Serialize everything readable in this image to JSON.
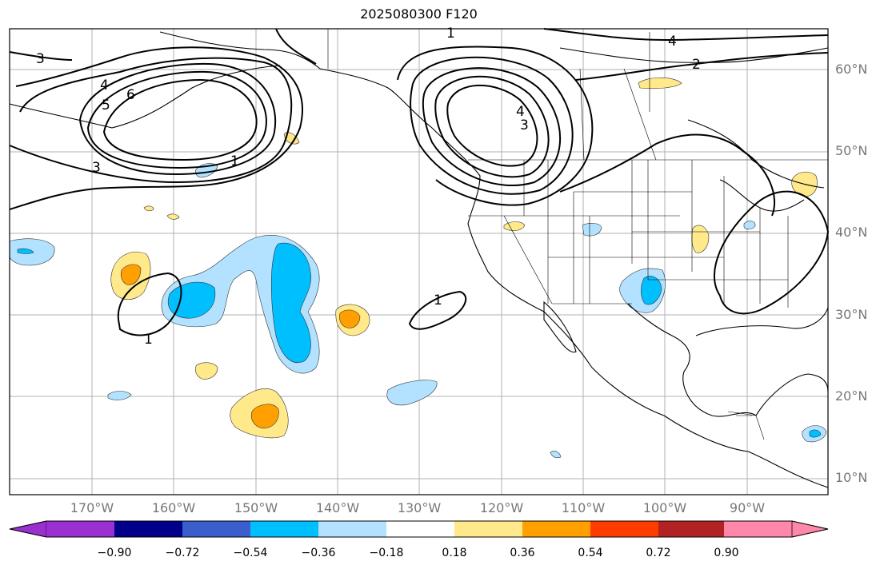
{
  "title": "2025080300 F120",
  "lat_labels": [
    "60°N",
    "50°N",
    "40°N",
    "30°N",
    "20°N",
    "10°N"
  ],
  "lon_labels": [
    "170°W",
    "160°W",
    "150°W",
    "140°W",
    "130°W",
    "120°W",
    "110°W",
    "100°W",
    "90°W"
  ],
  "contour_labels": [
    "1",
    "4",
    "2",
    "3",
    "4",
    "5",
    "6",
    "3",
    "1",
    "4",
    "3",
    "1",
    "1"
  ],
  "colorbar": {
    "ticks": [
      "−0.90",
      "−0.72",
      "−0.54",
      "−0.36",
      "−0.18",
      "0.18",
      "0.36",
      "0.54",
      "0.72",
      "0.90"
    ],
    "colors": [
      "#9b30d0",
      "#00008b",
      "#3a5fcd",
      "#00bfff",
      "#b2e2ff",
      "#ffffff",
      "#ffe98a",
      "#ffa000",
      "#ff3c00",
      "#b22222",
      "#ff88aa"
    ]
  },
  "colors": {
    "light_blue": "#b2e2ff",
    "blue": "#00bfff",
    "light_yellow": "#ffe98a",
    "orange": "#ffa000",
    "grid": "#b0b0b0",
    "axis_text": "#777777"
  }
}
